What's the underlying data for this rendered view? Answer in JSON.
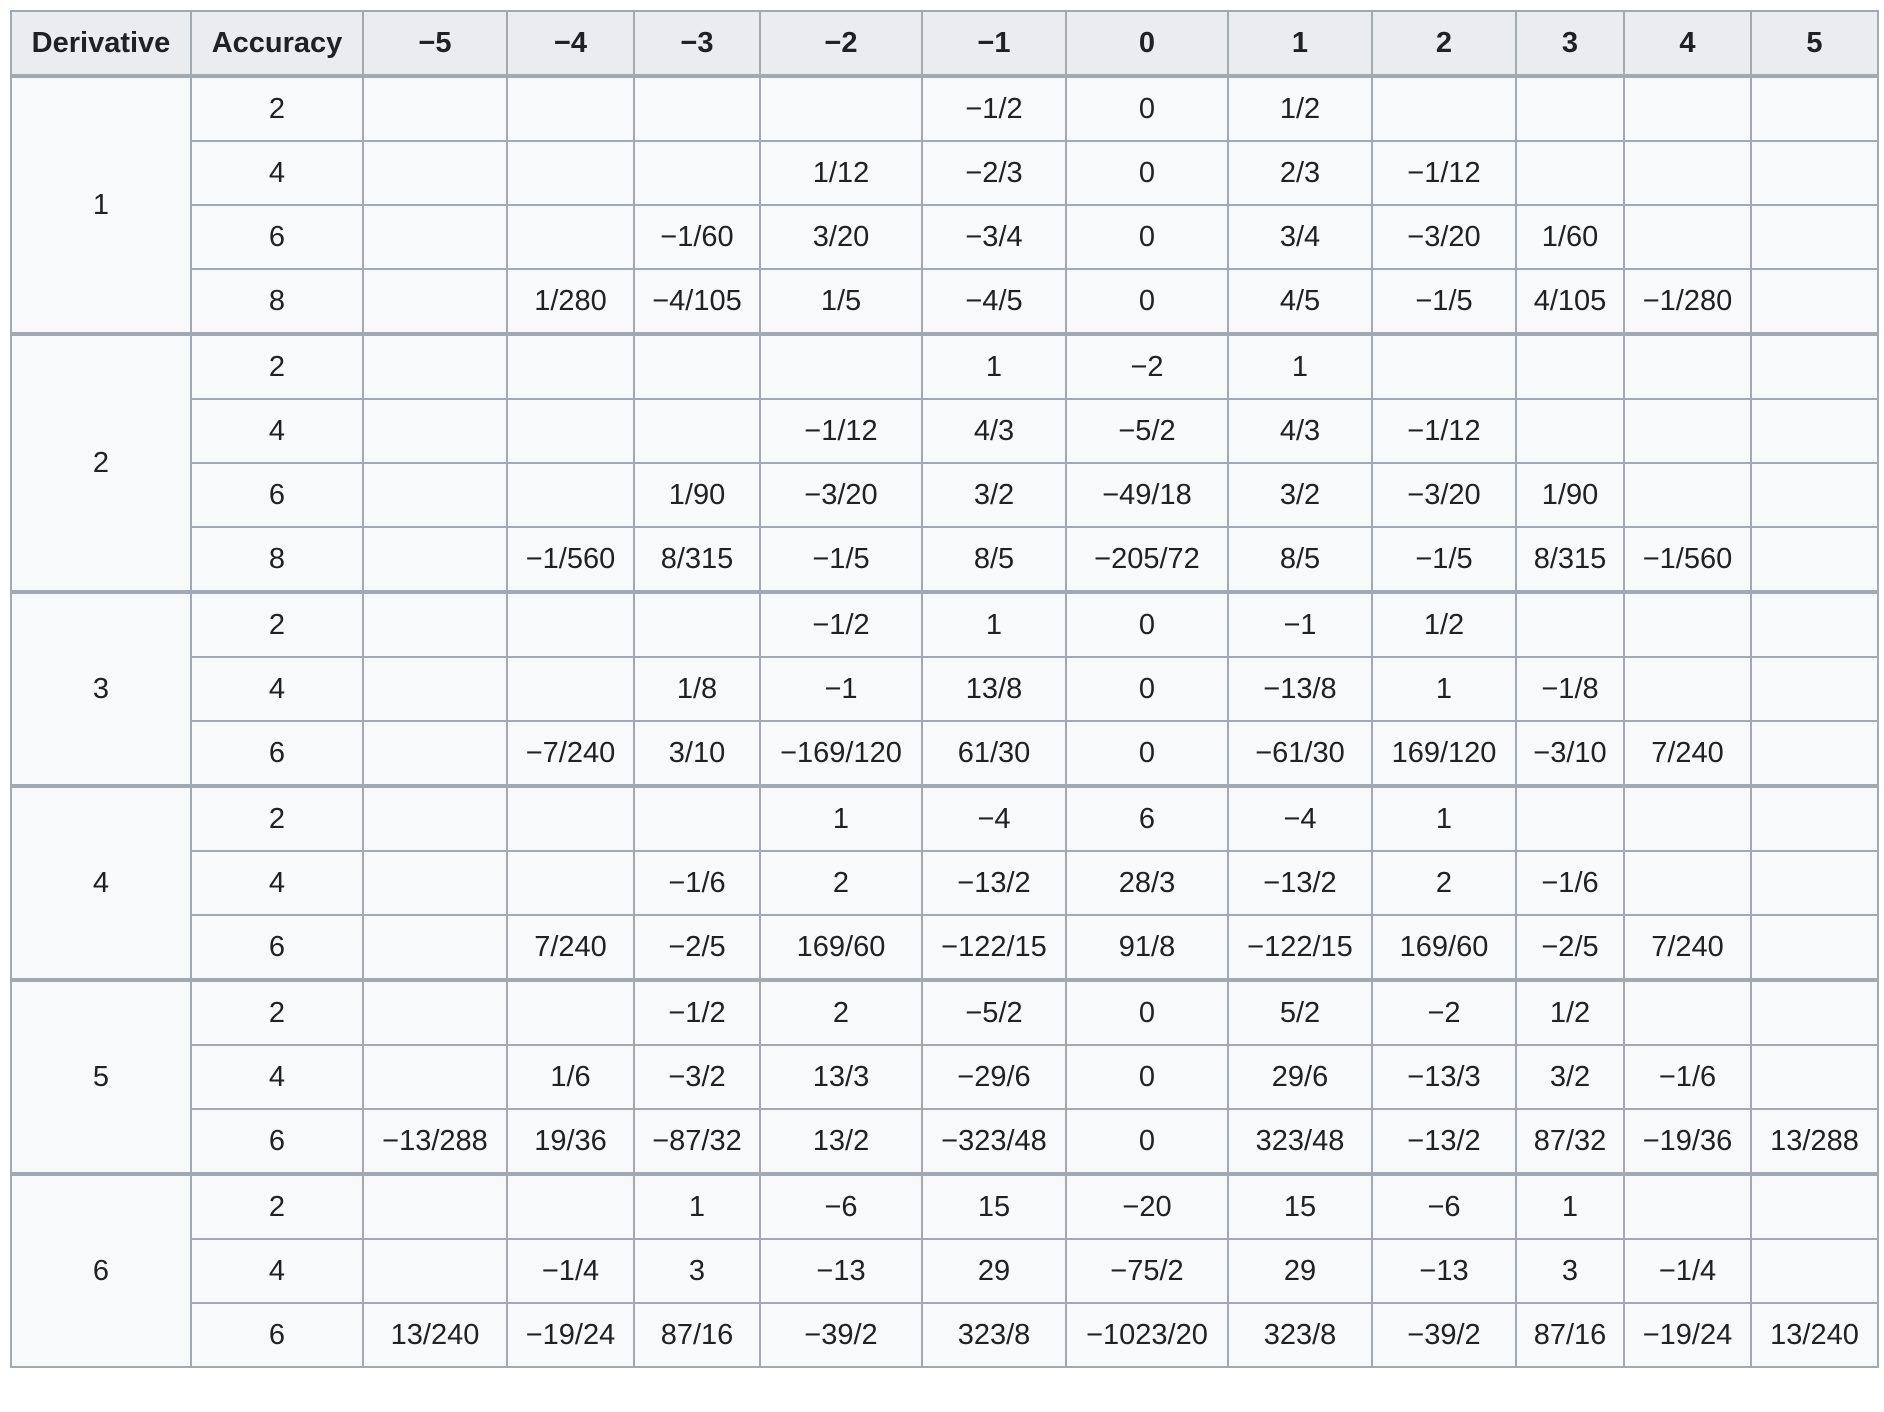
{
  "table": {
    "headers": [
      "Derivative",
      "Accuracy",
      "−5",
      "−4",
      "−3",
      "−2",
      "−1",
      "0",
      "1",
      "2",
      "3",
      "4",
      "5"
    ],
    "column_widths": [
      180,
      172,
      144,
      127,
      126,
      162,
      144,
      162,
      144,
      144,
      108,
      127,
      127
    ],
    "groups": [
      {
        "derivative": "1",
        "rows": [
          {
            "accuracy": "2",
            "cells": [
              "",
              "",
              "",
              "",
              "−1/2",
              "0",
              "1/2",
              "",
              "",
              "",
              ""
            ]
          },
          {
            "accuracy": "4",
            "cells": [
              "",
              "",
              "",
              "1/12",
              "−2/3",
              "0",
              "2/3",
              "−1/12",
              "",
              "",
              ""
            ]
          },
          {
            "accuracy": "6",
            "cells": [
              "",
              "",
              "−1/60",
              "3/20",
              "−3/4",
              "0",
              "3/4",
              "−3/20",
              "1/60",
              "",
              ""
            ]
          },
          {
            "accuracy": "8",
            "cells": [
              "",
              "1/280",
              "−4/105",
              "1/5",
              "−4/5",
              "0",
              "4/5",
              "−1/5",
              "4/105",
              "−1/280",
              ""
            ]
          }
        ]
      },
      {
        "derivative": "2",
        "rows": [
          {
            "accuracy": "2",
            "cells": [
              "",
              "",
              "",
              "",
              "1",
              "−2",
              "1",
              "",
              "",
              "",
              ""
            ]
          },
          {
            "accuracy": "4",
            "cells": [
              "",
              "",
              "",
              "−1/12",
              "4/3",
              "−5/2",
              "4/3",
              "−1/12",
              "",
              "",
              ""
            ]
          },
          {
            "accuracy": "6",
            "cells": [
              "",
              "",
              "1/90",
              "−3/20",
              "3/2",
              "−49/18",
              "3/2",
              "−3/20",
              "1/90",
              "",
              ""
            ]
          },
          {
            "accuracy": "8",
            "cells": [
              "",
              "−1/560",
              "8/315",
              "−1/5",
              "8/5",
              "−205/72",
              "8/5",
              "−1/5",
              "8/315",
              "−1/560",
              ""
            ]
          }
        ]
      },
      {
        "derivative": "3",
        "rows": [
          {
            "accuracy": "2",
            "cells": [
              "",
              "",
              "",
              "−1/2",
              "1",
              "0",
              "−1",
              "1/2",
              "",
              "",
              ""
            ]
          },
          {
            "accuracy": "4",
            "cells": [
              "",
              "",
              "1/8",
              "−1",
              "13/8",
              "0",
              "−13/8",
              "1",
              "−1/8",
              "",
              ""
            ]
          },
          {
            "accuracy": "6",
            "cells": [
              "",
              "−7/240",
              "3/10",
              "−169/120",
              "61/30",
              "0",
              "−61/30",
              "169/120",
              "−3/10",
              "7/240",
              ""
            ]
          }
        ]
      },
      {
        "derivative": "4",
        "rows": [
          {
            "accuracy": "2",
            "cells": [
              "",
              "",
              "",
              "1",
              "−4",
              "6",
              "−4",
              "1",
              "",
              "",
              ""
            ]
          },
          {
            "accuracy": "4",
            "cells": [
              "",
              "",
              "−1/6",
              "2",
              "−13/2",
              "28/3",
              "−13/2",
              "2",
              "−1/6",
              "",
              ""
            ]
          },
          {
            "accuracy": "6",
            "cells": [
              "",
              "7/240",
              "−2/5",
              "169/60",
              "−122/15",
              "91/8",
              "−122/15",
              "169/60",
              "−2/5",
              "7/240",
              ""
            ]
          }
        ]
      },
      {
        "derivative": "5",
        "rows": [
          {
            "accuracy": "2",
            "cells": [
              "",
              "",
              "−1/2",
              "2",
              "−5/2",
              "0",
              "5/2",
              "−2",
              "1/2",
              "",
              ""
            ]
          },
          {
            "accuracy": "4",
            "cells": [
              "",
              "1/6",
              "−3/2",
              "13/3",
              "−29/6",
              "0",
              "29/6",
              "−13/3",
              "3/2",
              "−1/6",
              ""
            ]
          },
          {
            "accuracy": "6",
            "cells": [
              "−13/288",
              "19/36",
              "−87/32",
              "13/2",
              "−323/48",
              "0",
              "323/48",
              "−13/2",
              "87/32",
              "−19/36",
              "13/288"
            ]
          }
        ]
      },
      {
        "derivative": "6",
        "rows": [
          {
            "accuracy": "2",
            "cells": [
              "",
              "",
              "1",
              "−6",
              "15",
              "−20",
              "15",
              "−6",
              "1",
              "",
              ""
            ]
          },
          {
            "accuracy": "4",
            "cells": [
              "",
              "−1/4",
              "3",
              "−13",
              "29",
              "−75/2",
              "29",
              "−13",
              "3",
              "−1/4",
              ""
            ]
          },
          {
            "accuracy": "6",
            "cells": [
              "13/240",
              "−19/24",
              "87/16",
              "−39/2",
              "323/8",
              "−1023/20",
              "323/8",
              "−39/2",
              "87/16",
              "−19/24",
              "13/240"
            ]
          }
        ]
      }
    ]
  }
}
